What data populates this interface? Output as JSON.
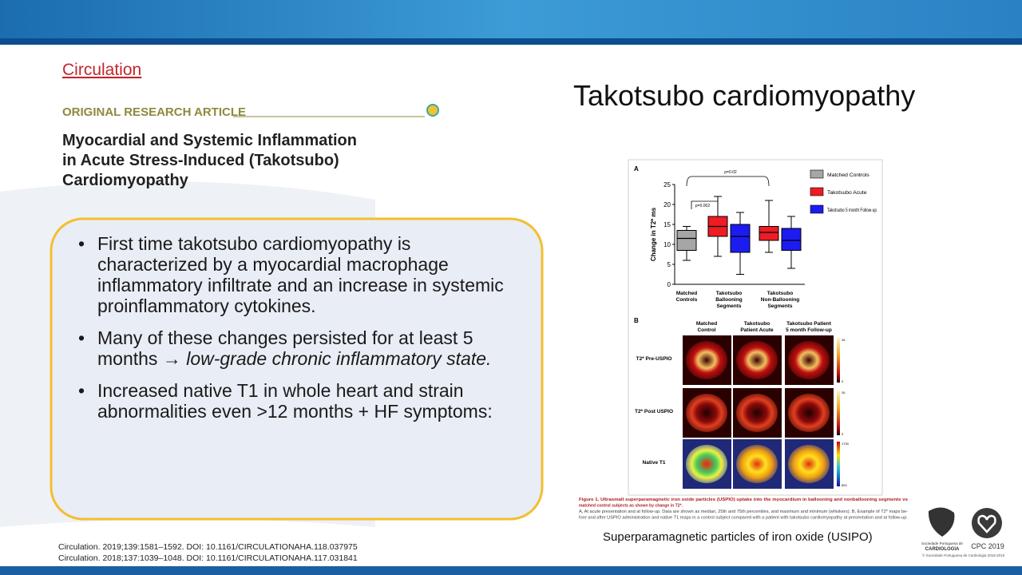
{
  "header": {
    "journal": "Circulation",
    "article_type": "ORIGINAL RESEARCH ARTICLE",
    "article_title": [
      "Myocardial and Systemic Inflammation",
      "in Acute Stress-Induced (Takotsubo)",
      "Cardiomyopathy"
    ]
  },
  "slide_title": "Takotsubo cardiomyopathy",
  "bullets": [
    {
      "text": "First time takotsubo cardiomyopathy is characterized by a myocardial macrophage inflammatory infiltrate and an increase in systemic proinflammatory cytokines."
    },
    {
      "text": "Many of these changes persisted for at least 5 months → ",
      "emphasis": "low-grade chronic inflammatory state."
    },
    {
      "text": "Increased native T1  in whole heart and strain abnormalities even >12 months  + HF symptoms:"
    }
  ],
  "figure": {
    "panel_a_label": "A",
    "chart": {
      "type": "box",
      "ylabel": "Change in T2* ms",
      "ylim": [
        0,
        25
      ],
      "yticks": [
        0,
        5,
        10,
        15,
        20,
        25
      ],
      "categories": [
        [
          "Matched",
          "Controls"
        ],
        [
          "Takotsubo",
          "Ballooning",
          "Segments"
        ],
        [
          "Takotsubo",
          "Non-Ballooning",
          "Segments"
        ]
      ],
      "series": [
        {
          "name": "Matched Controls",
          "color": "#a6a6a6",
          "values": [
            {
              "min": 6,
              "q1": 8.5,
              "median": 11.5,
              "q3": 13.5,
              "max": 14.5
            },
            null,
            null
          ]
        },
        {
          "name": "Takotsubo Acute",
          "color": "#ee1c24",
          "values": [
            null,
            {
              "min": 7,
              "q1": 12,
              "median": 14.5,
              "q3": 17,
              "max": 22
            },
            {
              "min": 8,
              "q1": 11,
              "median": 13,
              "q3": 14.5,
              "max": 21
            }
          ]
        },
        {
          "name": "Takotsubo 5 month Follow-up",
          "color": "#1c1cf0",
          "values": [
            null,
            {
              "min": 2.5,
              "q1": 8,
              "median": 12,
              "q3": 15,
              "max": 18
            },
            {
              "min": 4,
              "q1": 8.5,
              "median": 11,
              "q3": 14,
              "max": 17
            }
          ]
        }
      ],
      "annotations": [
        "p=0.02",
        "p=0.002"
      ]
    },
    "panel_b_label": "B",
    "column_labels": [
      [
        "Matched",
        "Control"
      ],
      [
        "Takotsubo",
        "Patient Acute"
      ],
      [
        "Takotsubo Patient",
        "5 month Follow-up"
      ]
    ],
    "row_labels": [
      "T2* Pre-USPIO",
      "T2* Post USPIO",
      "Native T1"
    ],
    "colorbar_labels": [
      [
        "26",
        "0"
      ],
      [
        "26",
        "0"
      ],
      [
        "1700",
        "800"
      ]
    ],
    "caption": [
      "Figure 1. Ultrasmall superparamagnetic iron oxide particles (USPIO) uptake into the myocardium in ballooning and nonballooning segments vs",
      "matched control subjects as shown by change in T2*.",
      "A, At acute presentation and at follow-up. Data are shown as median, 25th and 75th percentiles, and maximum and minimum (whiskers). B, Example of T2* maps be-",
      "fore and after USPIO administration and native T1 maps in a control subject compared with a patient with takotsubo cardiomyopathy at presentation and at follow-up."
    ]
  },
  "image_caption": "Superparamagnetic  particles of iron oxide (USIPO)",
  "references": [
    "Circulation. 2019;139:1581–1592. DOI: 10.1161/CIRCULATIONAHA.118.037975",
    "Circulation. 2018;137:1039–1048. DOI: 10.1161/CIRCULATIONAHA.117.031841"
  ],
  "logos": {
    "society": [
      "Sociedade Portuguesa de",
      "CARDIOLOGIA"
    ],
    "congress": "CPC 2019",
    "copyright": "© Sociedade Portuguesa de Cardiologia 2018-2019"
  }
}
